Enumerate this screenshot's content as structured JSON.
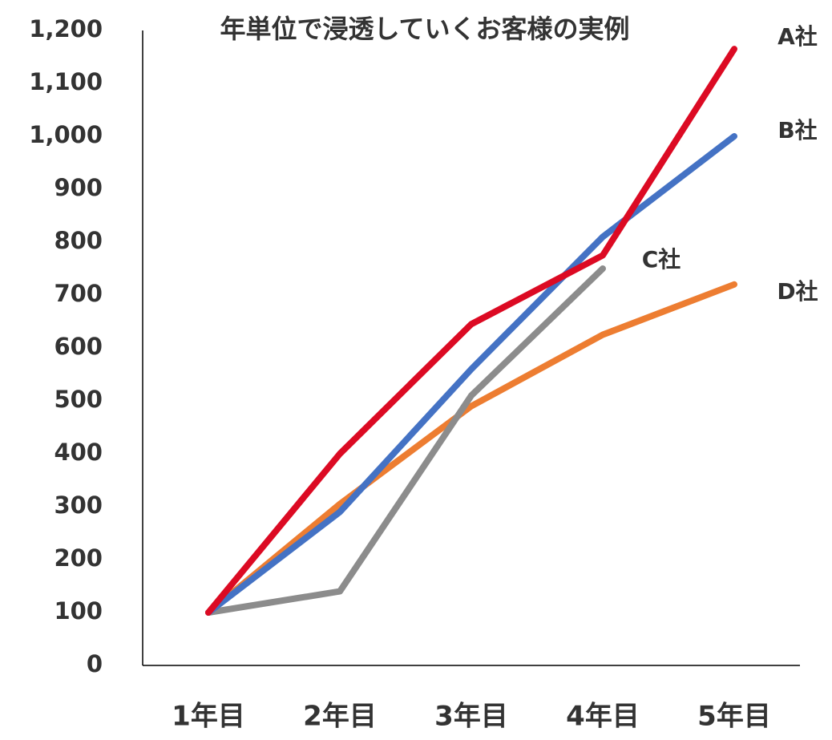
{
  "chart_data": {
    "type": "line",
    "title": "年単位で浸透していくお客様の実例",
    "categories": [
      "1年目",
      "2年目",
      "3年目",
      "4年目",
      "5年目"
    ],
    "series": [
      {
        "name": "A社",
        "color": "#dc0a23",
        "values": [
          100,
          400,
          645,
          775,
          1165
        ]
      },
      {
        "name": "B社",
        "color": "#4472c4",
        "values": [
          100,
          290,
          560,
          810,
          1000
        ]
      },
      {
        "name": "C社",
        "color": "#8c8c8c",
        "values": [
          100,
          140,
          510,
          750,
          null
        ]
      },
      {
        "name": "D社",
        "color": "#ed7d31",
        "values": [
          100,
          305,
          490,
          625,
          720
        ]
      }
    ],
    "ylim": [
      0,
      1200
    ],
    "yticks": [
      0,
      100,
      200,
      300,
      400,
      500,
      600,
      700,
      800,
      900,
      {
        "value": 1000,
        "label": "1,000"
      },
      {
        "value": 1100,
        "label": "1,100"
      },
      {
        "value": 1200,
        "label": "1,200"
      }
    ],
    "grid": false
  }
}
